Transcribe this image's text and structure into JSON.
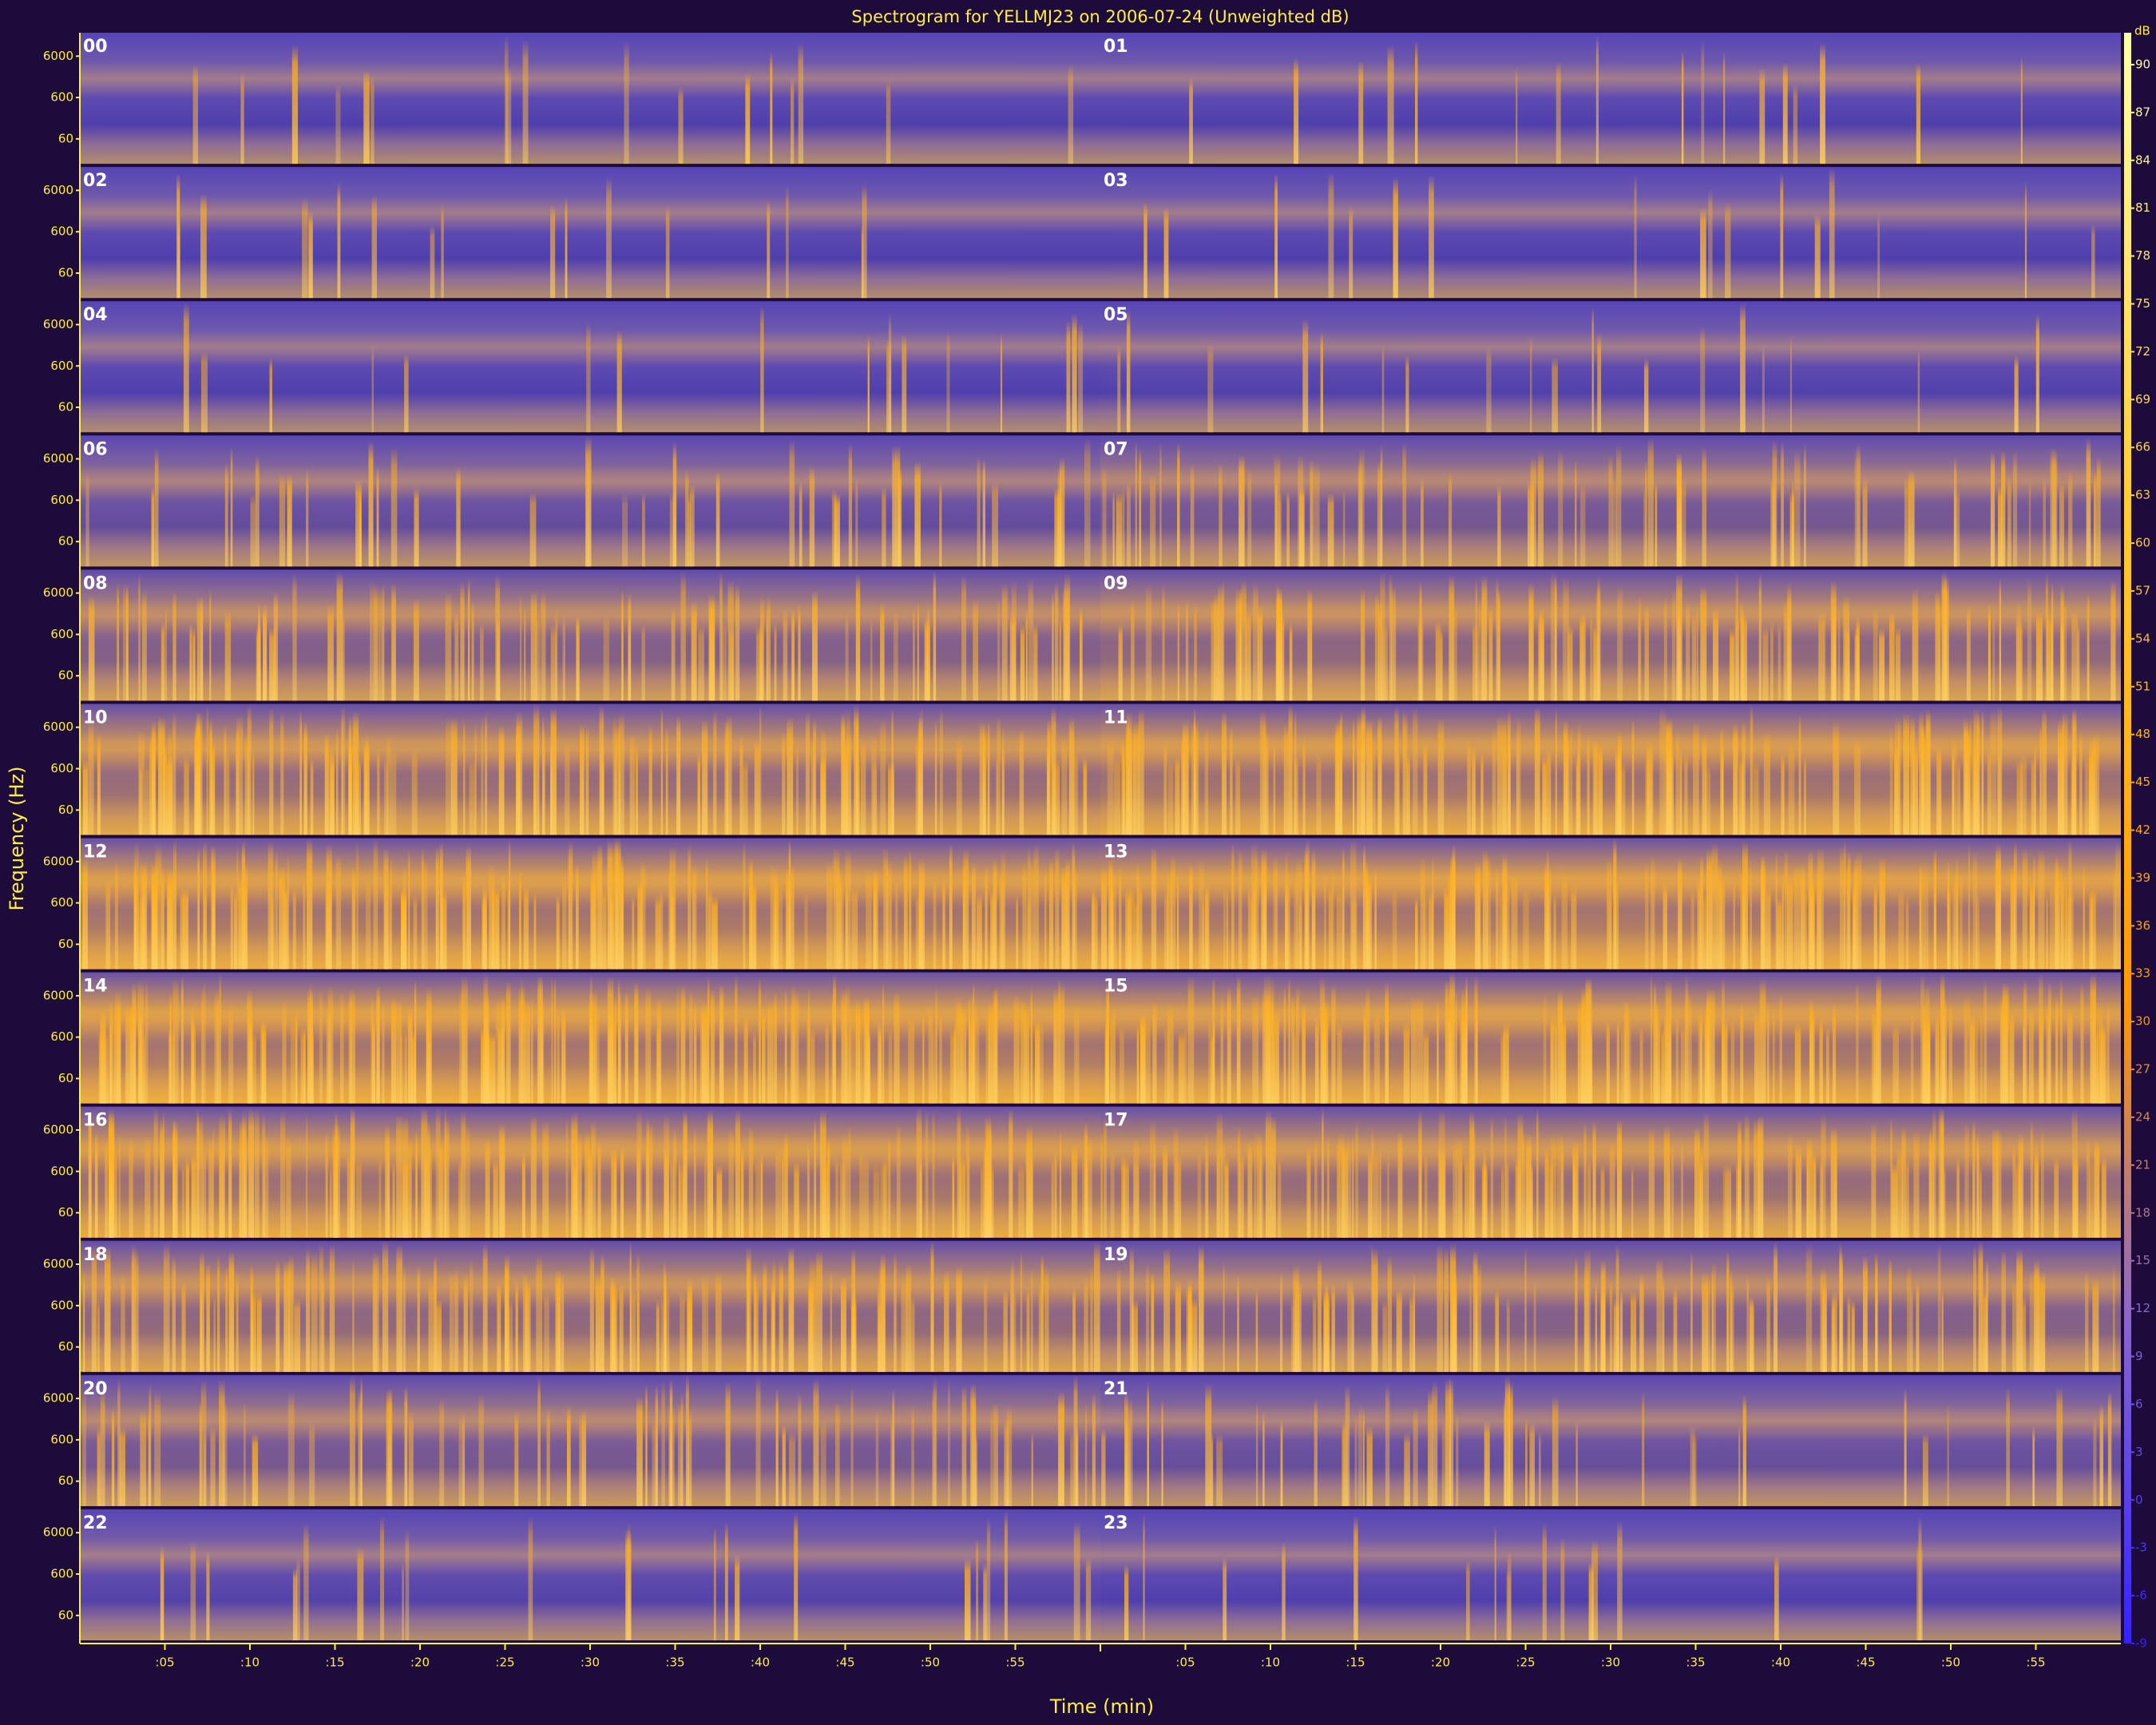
{
  "chart_data": {
    "type": "spectrogram",
    "title": "Spectrogram for YELLMJ23 on 2006-07-24 (Unweighted dB)",
    "xlabel": "Time (min)",
    "ylabel": "Frequency (Hz)",
    "hours": [
      "00",
      "01",
      "02",
      "03",
      "04",
      "05",
      "06",
      "07",
      "08",
      "09",
      "10",
      "11",
      "12",
      "13",
      "14",
      "15",
      "16",
      "17",
      "18",
      "19",
      "20",
      "21",
      "22",
      "23"
    ],
    "xlim": [
      0,
      60
    ],
    "xticks": [
      {
        "value": 5,
        "label": ":05"
      },
      {
        "value": 10,
        "label": ":10"
      },
      {
        "value": 15,
        "label": ":15"
      },
      {
        "value": 20,
        "label": ":20"
      },
      {
        "value": 25,
        "label": ":25"
      },
      {
        "value": 30,
        "label": ":30"
      },
      {
        "value": 35,
        "label": ":35"
      },
      {
        "value": 40,
        "label": ":40"
      },
      {
        "value": 45,
        "label": ":45"
      },
      {
        "value": 50,
        "label": ":50"
      },
      {
        "value": 55,
        "label": ":55"
      }
    ],
    "ylim": [
      15,
      22050
    ],
    "yticks": [
      60,
      600,
      6000
    ],
    "ylog": true,
    "colorbar": {
      "label": "dB",
      "lim": [
        -9,
        92
      ],
      "ticks": [
        90,
        87,
        84,
        81,
        78,
        75,
        72,
        69,
        66,
        63,
        60,
        57,
        54,
        51,
        48,
        45,
        42,
        39,
        36,
        33,
        30,
        27,
        24,
        21,
        18,
        15,
        12,
        9,
        6,
        3,
        0,
        -3,
        -6,
        -9
      ]
    }
  }
}
